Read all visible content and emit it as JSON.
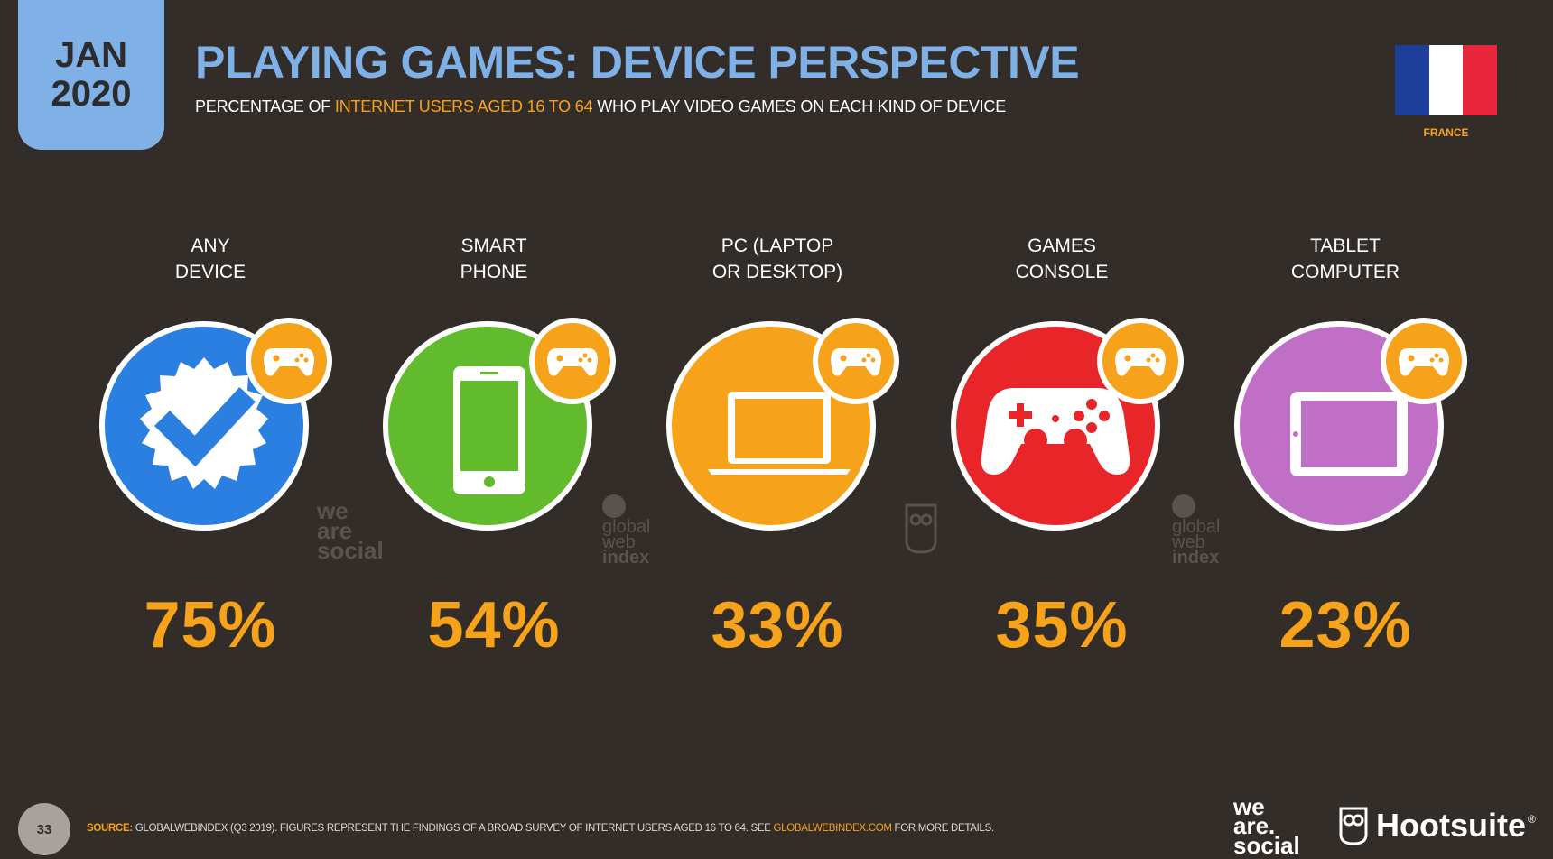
{
  "header": {
    "date_month": "JAN",
    "date_year": "2020",
    "title": "PLAYING GAMES: DEVICE PERSPECTIVE",
    "subtitle_pre": "PERCENTAGE OF ",
    "subtitle_highlight": "INTERNET USERS AGED 16 TO 64",
    "subtitle_post": " WHO PLAY VIDEO GAMES ON EACH KIND OF DEVICE",
    "country": "FRANCE"
  },
  "items": [
    {
      "label_line1": "ANY",
      "label_line2": "DEVICE",
      "value": "75%",
      "color": "#2a7fe0",
      "icon": "verified-check-icon"
    },
    {
      "label_line1": "SMART",
      "label_line2": "PHONE",
      "value": "54%",
      "color": "#62bb2c",
      "icon": "smartphone-icon"
    },
    {
      "label_line1": "PC (LAPTOP",
      "label_line2": "OR DESKTOP)",
      "value": "33%",
      "color": "#f7a21b",
      "icon": "laptop-icon"
    },
    {
      "label_line1": "GAMES",
      "label_line2": "CONSOLE",
      "value": "35%",
      "color": "#e8262a",
      "icon": "gamepad-icon"
    },
    {
      "label_line1": "TABLET",
      "label_line2": "COMPUTER",
      "value": "23%",
      "color": "#c06fc6",
      "icon": "tablet-icon"
    }
  ],
  "watermarks": {
    "we": "we",
    "are": "are",
    "social": "social",
    "global": "global",
    "web": "web",
    "index": "index"
  },
  "footer": {
    "page_number": "33",
    "source_key": "SOURCE:",
    "source_text": " GLOBALWEBINDEX (Q3 2019). FIGURES REPRESENT THE FINDINGS OF A BROAD SURVEY OF INTERNET USERS AGED 16 TO 64. SEE ",
    "source_link": "GLOBALWEBINDEX.COM",
    "source_end": " FOR MORE DETAILS.",
    "brand1_we": "we",
    "brand1_are": "are.",
    "brand1_social": "social",
    "brand2": "Hootsuite",
    "brand2_mark": "®"
  },
  "colors": {
    "background": "#332d29",
    "accent_blue": "#7fb0e6",
    "accent_orange": "#f7a21b",
    "flag_blue": "#1d3e99",
    "flag_white": "#ffffff",
    "flag_red": "#e8283a"
  }
}
